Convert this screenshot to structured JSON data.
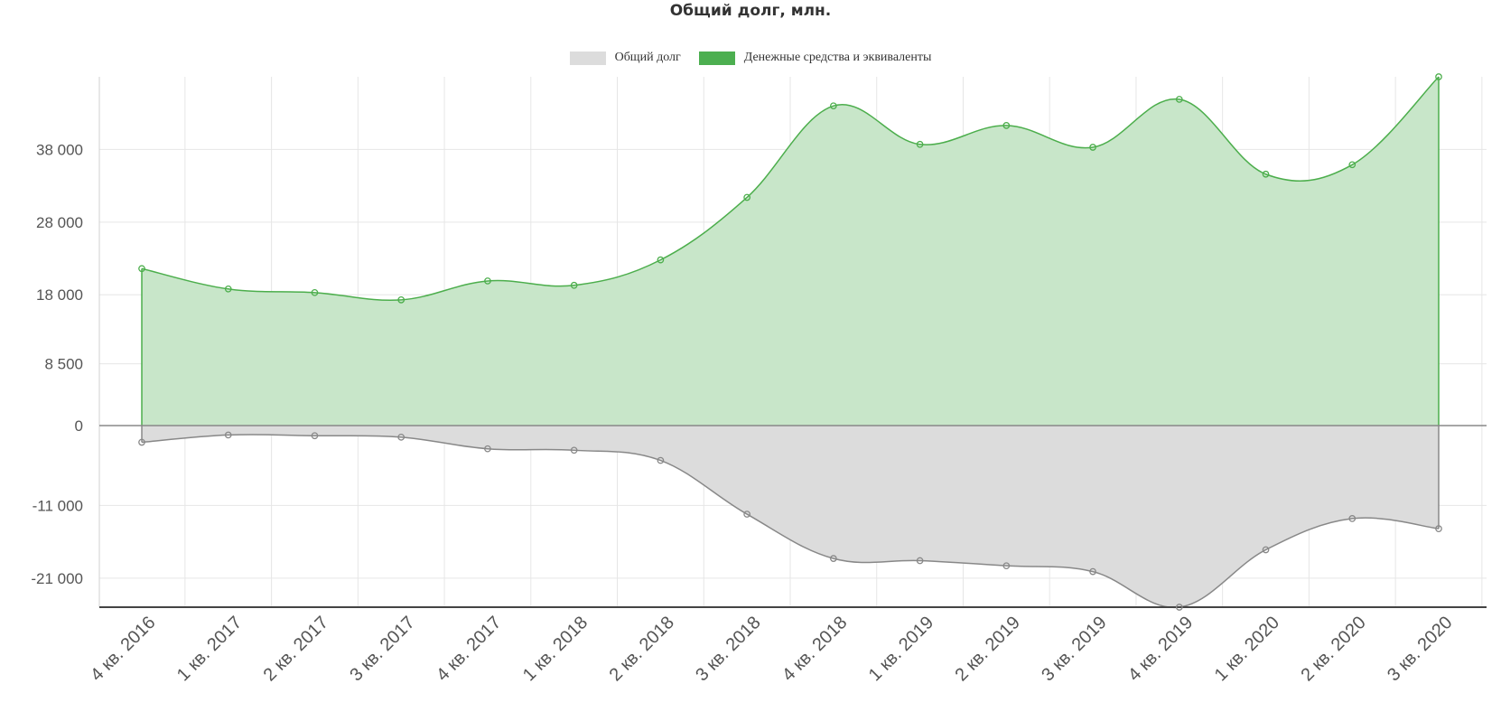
{
  "chart_data": {
    "type": "area",
    "title": "Общий долг, млн.",
    "categories": [
      "4 кв. 2016",
      "1 кв. 2017",
      "2 кв. 2017",
      "3 кв. 2017",
      "4 кв. 2017",
      "1 кв. 2018",
      "2 кв. 2018",
      "3 кв. 2018",
      "4 кв. 2018",
      "1 кв. 2019",
      "2 кв. 2019",
      "3 кв. 2019",
      "4 кв. 2019",
      "1 кв. 2020",
      "2 кв. 2020",
      "3 кв. 2020"
    ],
    "series": [
      {
        "name": "Общий долг",
        "color": "#dcdcdc",
        "line_color": "#888888",
        "values": [
          -2300,
          -1300,
          -1400,
          -1600,
          -3200,
          -3400,
          -4800,
          -12200,
          -18300,
          -18600,
          -19300,
          -20100,
          -25000,
          -17100,
          -12800,
          -14200
        ]
      },
      {
        "name": "Денежные средства и эквиваленты",
        "color": "#4caf50",
        "fill_color": "#c8e6c9",
        "line_color": "#4cae4c",
        "values": [
          21600,
          18800,
          18300,
          17300,
          19900,
          19300,
          22800,
          31400,
          44000,
          38700,
          41300,
          38300,
          44900,
          34600,
          35900,
          48000
        ]
      }
    ],
    "y_ticks": [
      {
        "v": 38000,
        "label": "38 000"
      },
      {
        "v": 28000,
        "label": "28 000"
      },
      {
        "v": 18000,
        "label": "18 000"
      },
      {
        "v": 8500,
        "label": "8 500"
      },
      {
        "v": 0,
        "label": "0"
      },
      {
        "v": -11000,
        "label": "-11 000"
      },
      {
        "v": -21000,
        "label": "-21 000"
      }
    ],
    "ylim": [
      -25000,
      48000
    ],
    "legend_position": "top-center",
    "grid": true
  }
}
